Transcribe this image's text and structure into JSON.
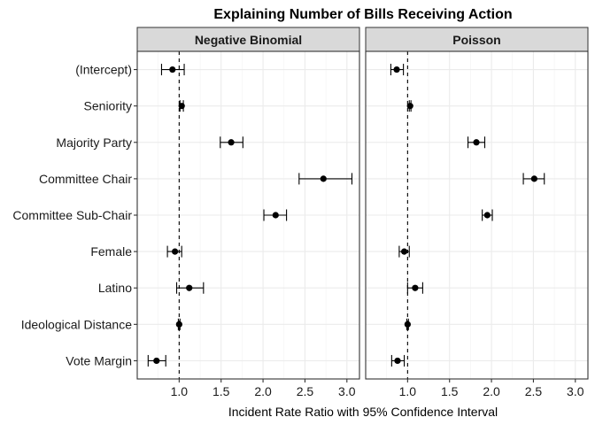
{
  "chart_data": {
    "type": "forest",
    "title": "Explaining Number of Bills Receiving Action",
    "xlabel": "Incident Rate Ratio with 95% Confidence Interval",
    "ylabel": "",
    "xlim": [
      0.5,
      3.15
    ],
    "xticks": [
      1.0,
      1.5,
      2.0,
      2.5,
      3.0
    ],
    "xtick_labels": [
      "1.0",
      "1.5",
      "2.0",
      "2.5",
      "3.0"
    ],
    "reference_line": 1.0,
    "grid": true,
    "categories": [
      "(Intercept)",
      "Seniority",
      "Majority Party",
      "Committee Chair",
      "Committee Sub-Chair",
      "Female",
      "Latino",
      "Ideological Distance",
      "Vote Margin"
    ],
    "panels": [
      {
        "name": "Negative Binomial",
        "estimates": [
          0.92,
          1.03,
          1.62,
          2.72,
          2.15,
          0.95,
          1.12,
          1.0,
          0.73
        ],
        "lower": [
          0.79,
          1.01,
          1.49,
          2.43,
          2.01,
          0.86,
          0.97,
          0.99,
          0.63
        ],
        "upper": [
          1.06,
          1.05,
          1.76,
          3.06,
          2.28,
          1.03,
          1.29,
          1.01,
          0.84
        ]
      },
      {
        "name": "Poisson",
        "estimates": [
          0.87,
          1.03,
          1.82,
          2.51,
          1.95,
          0.96,
          1.09,
          1.0,
          0.88
        ],
        "lower": [
          0.8,
          1.02,
          1.72,
          2.38,
          1.89,
          0.9,
          1.0,
          0.99,
          0.81
        ],
        "upper": [
          0.95,
          1.04,
          1.92,
          2.63,
          2.01,
          1.02,
          1.18,
          1.01,
          0.96
        ]
      }
    ]
  }
}
